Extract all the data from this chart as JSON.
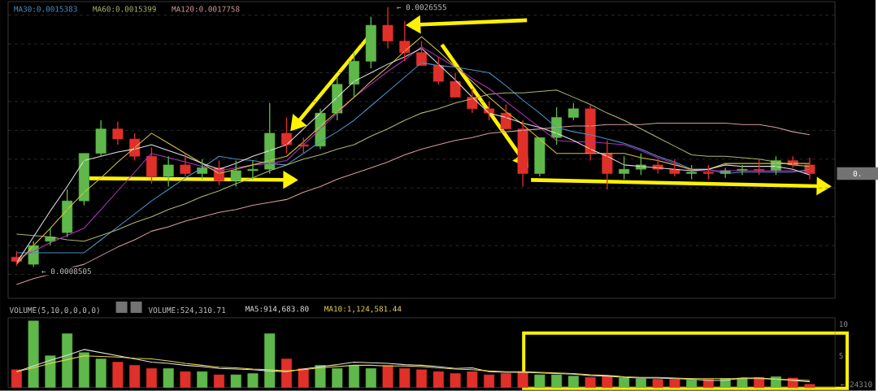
{
  "chart_data": [
    {
      "type": "candlestick",
      "categories": [
        null,
        null,
        null,
        null,
        null,
        null,
        null,
        null,
        null,
        null,
        null,
        null,
        null,
        null,
        null,
        null,
        null,
        null,
        null,
        null,
        null,
        null,
        null,
        null,
        null,
        null,
        null,
        null,
        null,
        null,
        null,
        null,
        null,
        null,
        null,
        null,
        null,
        null,
        null,
        null,
        null,
        null,
        null,
        null,
        null,
        null,
        null,
        null
      ],
      "ohlc": [
        [
          0.00092,
          0.00096,
          0.00086,
          0.00089
        ],
        [
          0.00087,
          0.00103,
          0.0008505,
          0.001
        ],
        [
          0.00103,
          0.00112,
          0.001,
          0.00106
        ],
        [
          0.00109,
          0.00139,
          0.00106,
          0.00131
        ],
        [
          0.00131,
          0.00164,
          0.00128,
          0.00164
        ],
        [
          0.00164,
          0.00187,
          0.00162,
          0.00181
        ],
        [
          0.00181,
          0.00186,
          0.0017,
          0.00174
        ],
        [
          0.00174,
          0.00178,
          0.00159,
          0.00162
        ],
        [
          0.00162,
          0.00168,
          0.00143,
          0.00148
        ],
        [
          0.00148,
          0.00162,
          0.00141,
          0.00156
        ],
        [
          0.00156,
          0.00164,
          0.00148,
          0.0015
        ],
        [
          0.0015,
          0.0016,
          0.00146,
          0.00154
        ],
        [
          0.00154,
          0.00159,
          0.00142,
          0.00145
        ],
        [
          0.00145,
          0.00159,
          0.00141,
          0.00152
        ],
        [
          0.00152,
          0.00159,
          0.00146,
          0.00153
        ],
        [
          0.00153,
          0.00199,
          0.0015,
          0.00178
        ],
        [
          0.00178,
          0.00189,
          0.00164,
          0.0017
        ],
        [
          0.0017,
          0.00175,
          0.00164,
          0.00169
        ],
        [
          0.00169,
          0.00195,
          0.00167,
          0.00192
        ],
        [
          0.00192,
          0.00217,
          0.00187,
          0.00212
        ],
        [
          0.00212,
          0.00234,
          0.00203,
          0.00228
        ],
        [
          0.00228,
          0.00259,
          0.00223,
          0.00253
        ],
        [
          0.00253,
          0.0026555,
          0.00237,
          0.00242
        ],
        [
          0.00242,
          0.00256,
          0.00228,
          0.00234
        ],
        [
          0.00234,
          0.00242,
          0.00225,
          0.00225
        ],
        [
          0.00225,
          0.00231,
          0.00212,
          0.00214
        ],
        [
          0.00214,
          0.0022,
          0.00203,
          0.00203
        ],
        [
          0.00203,
          0.00209,
          0.00192,
          0.00195
        ],
        [
          0.00195,
          0.002,
          0.00187,
          0.00192
        ],
        [
          0.00192,
          0.00198,
          0.00181,
          0.00181
        ],
        [
          0.00181,
          0.00187,
          0.00141,
          0.0015
        ],
        [
          0.0015,
          0.00175,
          0.00148,
          0.00175
        ],
        [
          0.00175,
          0.00196,
          0.0017,
          0.00189
        ],
        [
          0.00189,
          0.00199,
          0.00187,
          0.00195
        ],
        [
          0.00195,
          0.00198,
          0.00159,
          0.00164
        ],
        [
          0.00164,
          0.00173,
          0.00139,
          0.0015
        ],
        [
          0.0015,
          0.00162,
          0.00146,
          0.00153
        ],
        [
          0.00153,
          0.00164,
          0.00149,
          0.00156
        ],
        [
          0.00156,
          0.0016,
          0.0015,
          0.00153
        ],
        [
          0.00153,
          0.0016,
          0.00148,
          0.0015
        ],
        [
          0.0015,
          0.00156,
          0.00146,
          0.00151
        ],
        [
          0.00151,
          0.00156,
          0.00146,
          0.0015
        ],
        [
          0.0015,
          0.00154,
          0.00147,
          0.00152
        ],
        [
          0.00152,
          0.00156,
          0.00149,
          0.00153
        ],
        [
          0.00153,
          0.0016,
          0.00149,
          0.00152
        ],
        [
          0.00152,
          0.00162,
          0.00149,
          0.00159
        ],
        [
          0.00159,
          0.00162,
          0.00154,
          0.00156
        ],
        [
          0.00156,
          0.00161,
          0.00146,
          0.0015
        ]
      ],
      "colors": [
        "#e0302a",
        "#5fb84a",
        "#5fb84a",
        "#5fb84a",
        "#5fb84a",
        "#5fb84a",
        "#e0302a",
        "#e0302a",
        "#e0302a",
        "#5fb84a",
        "#e0302a",
        "#5fb84a",
        "#e0302a",
        "#5fb84a",
        "#5fb84a",
        "#5fb84a",
        "#e0302a",
        "#e0302a",
        "#5fb84a",
        "#5fb84a",
        "#5fb84a",
        "#5fb84a",
        "#e0302a",
        "#e0302a",
        "#e0302a",
        "#e0302a",
        "#e0302a",
        "#e0302a",
        "#e0302a",
        "#e0302a",
        "#e0302a",
        "#5fb84a",
        "#5fb84a",
        "#5fb84a",
        "#e0302a",
        "#e0302a",
        "#5fb84a",
        "#5fb84a",
        "#e0302a",
        "#e0302a",
        "#5fb84a",
        "#e0302a",
        "#5fb84a",
        "#5fb84a",
        "#e0302a",
        "#5fb84a",
        "#e0302a",
        "#e0302a"
      ],
      "series": [
        {
          "type": "line",
          "name": "MA30:0.0015383",
          "color": "#4a90c8",
          "values": [
            0.00095,
            0.00095,
            0.00095,
            0.00095,
            0.00095,
            0.00104,
            0.00113,
            0.00122,
            0.00131,
            0.00139,
            0.00147,
            0.00154,
            0.00162,
            0.0016,
            0.00159,
            0.00157,
            0.00156,
            0.00164,
            0.00172,
            0.00179,
            0.00187,
            0.00197,
            0.00207,
            0.00217,
            0.00227,
            0.00225,
            0.00224,
            0.00222,
            0.0022,
            0.00211,
            0.00201,
            0.00192,
            0.00182,
            0.00179,
            0.00177,
            0.00174,
            0.00171,
            0.00167,
            0.00162,
            0.00158,
            0.00153,
            0.00153,
            0.0015,
            0.00151,
            0.00151,
            0.00151,
            0.00151,
            0.00153
          ]
        },
        {
          "type": "line",
          "name": "MA60:0.0015399",
          "color": "#a8b870",
          "values": [
            0.00108,
            0.00107,
            0.00106,
            0.00104,
            0.00103,
            0.00107,
            0.00111,
            0.00116,
            0.0012,
            0.00125,
            0.00129,
            0.00134,
            0.00138,
            0.00143,
            0.00147,
            0.00152,
            0.00156,
            0.0016,
            0.00163,
            0.00167,
            0.0017,
            0.00176,
            0.00181,
            0.00187,
            0.00192,
            0.00195,
            0.00199,
            0.00202,
            0.00205,
            0.00206,
            0.00206,
            0.00207,
            0.00208,
            0.00203,
            0.00198,
            0.00192,
            0.00187,
            0.00181,
            0.00175,
            0.00169,
            0.00163,
            0.00162,
            0.00162,
            0.00161,
            0.0016,
            0.00158,
            0.00156,
            0.00155
          ]
        },
        {
          "type": "line",
          "name": "MA120:0.0017758",
          "color": "#d49a9a",
          "values": [
            0.00073,
            0.00077,
            0.0008,
            0.00084,
            0.00087,
            0.00093,
            0.00099,
            0.00104,
            0.0011,
            0.00113,
            0.00117,
            0.0012,
            0.00123,
            0.00125,
            0.00128,
            0.0013,
            0.00132,
            0.00137,
            0.00141,
            0.00146,
            0.0015,
            0.00154,
            0.00158,
            0.00163,
            0.00167,
            0.0017,
            0.00173,
            0.00175,
            0.00178,
            0.00179,
            0.0018,
            0.00181,
            0.00182,
            0.00183,
            0.00183,
            0.00184,
            0.00184,
            0.00184,
            0.00185,
            0.00185,
            0.00185,
            0.00185,
            0.00185,
            0.00184,
            0.00184,
            0.00182,
            0.00179,
            0.00177
          ]
        },
        {
          "type": "line",
          "color": "#b030c0",
          "values": [
            0.00091,
            0.00096,
            0.00102,
            0.00107,
            0.00112,
            0.00125,
            0.00138,
            0.00151,
            0.00164,
            0.00161,
            0.00158,
            0.00155,
            0.00152,
            0.00154,
            0.00156,
            0.00157,
            0.00159,
            0.0017,
            0.00181,
            0.00192,
            0.00203,
            0.00212,
            0.00221,
            0.00229,
            0.00238,
            0.00231,
            0.00224,
            0.00216,
            0.00209,
            0.002,
            0.00191,
            0.00182,
            0.00173,
            0.00172,
            0.00172,
            0.00171,
            0.0017,
            0.00166,
            0.00161,
            0.00157,
            0.00152,
            0.00152,
            0.00152,
            0.00152,
            0.00152,
            0.00152,
            0.00152,
            0.00151
          ]
        },
        {
          "type": "line",
          "color": "#d8c040",
          "values": [
            0.00087,
            0.001,
            0.00112,
            0.00125,
            0.00137,
            0.00147,
            0.00158,
            0.00168,
            0.00178,
            0.00171,
            0.00164,
            0.00157,
            0.0015,
            0.00153,
            0.00156,
            0.00159,
            0.00162,
            0.00172,
            0.00183,
            0.00193,
            0.00203,
            0.00214,
            0.00224,
            0.00235,
            0.00245,
            0.00235,
            0.00224,
            0.00214,
            0.00203,
            0.00193,
            0.00184,
            0.00174,
            0.00164,
            0.00164,
            0.00164,
            0.00164,
            0.00164,
            0.00161,
            0.00159,
            0.00156,
            0.00153,
            0.00153,
            0.00157,
            0.00157,
            0.00157,
            0.00157,
            0.00157,
            0.00157
          ]
        },
        {
          "type": "line",
          "color": "#e0e0e0",
          "values": [
            0.00088,
            0.00106,
            0.00124,
            0.00141,
            0.00159,
            0.00162,
            0.00165,
            0.00167,
            0.0017,
            0.00166,
            0.00162,
            0.00157,
            0.00153,
            0.00157,
            0.00162,
            0.00166,
            0.0017,
            0.00181,
            0.00192,
            0.00203,
            0.00214,
            0.0022,
            0.00226,
            0.00231,
            0.00237,
            0.00226,
            0.00215,
            0.00203,
            0.00192,
            0.00189,
            0.00185,
            0.00182,
            0.00178,
            0.00173,
            0.00167,
            0.00162,
            0.00156,
            0.00155,
            0.00154,
            0.00153,
            0.00152,
            0.00153,
            0.00156,
            0.00155,
            0.00155,
            0.00155,
            0.00153,
            0.00149
          ]
        }
      ],
      "annotations": [
        "← 0.0026555",
        "← 0.0008505",
        "0."
      ],
      "grid": "y",
      "legend": "top left",
      "tick_labels": false
    },
    {
      "type": "bar",
      "title": "VOLUME(5,10,0,0,0,0)",
      "categories": [
        null,
        null,
        null,
        null,
        null,
        null,
        null,
        null,
        null,
        null,
        null,
        null,
        null,
        null,
        null,
        null,
        null,
        null,
        null,
        null,
        null,
        null,
        null,
        null,
        null,
        null,
        null,
        null,
        null,
        null,
        null,
        null,
        null,
        null,
        null,
        null,
        null,
        null,
        null,
        null,
        null,
        null,
        null,
        null,
        null,
        null,
        null,
        null
      ],
      "values": [
        2.8,
        10.5,
        5.0,
        8.5,
        5.5,
        4.5,
        4.0,
        3.5,
        3.0,
        3.0,
        2.5,
        2.5,
        2.0,
        2.0,
        2.2,
        8.5,
        4.5,
        3.0,
        3.5,
        3.0,
        3.5,
        3.0,
        3.5,
        3.0,
        2.8,
        2.5,
        2.2,
        2.5,
        2.0,
        2.2,
        2.5,
        2.0,
        2.0,
        1.8,
        1.6,
        1.8,
        1.5,
        1.4,
        1.3,
        1.3,
        1.2,
        1.3,
        1.4,
        1.5,
        1.6,
        1.7,
        1.5,
        0.5
      ],
      "colors": [
        "#e0302a",
        "#5fb84a",
        "#5fb84a",
        "#5fb84a",
        "#5fb84a",
        "#5fb84a",
        "#e0302a",
        "#e0302a",
        "#e0302a",
        "#5fb84a",
        "#e0302a",
        "#5fb84a",
        "#e0302a",
        "#5fb84a",
        "#5fb84a",
        "#5fb84a",
        "#e0302a",
        "#e0302a",
        "#5fb84a",
        "#5fb84a",
        "#5fb84a",
        "#5fb84a",
        "#e0302a",
        "#e0302a",
        "#e0302a",
        "#e0302a",
        "#e0302a",
        "#e0302a",
        "#e0302a",
        "#e0302a",
        "#e0302a",
        "#5fb84a",
        "#5fb84a",
        "#5fb84a",
        "#e0302a",
        "#e0302a",
        "#5fb84a",
        "#5fb84a",
        "#e0302a",
        "#e0302a",
        "#5fb84a",
        "#e0302a",
        "#5fb84a",
        "#5fb84a",
        "#e0302a",
        "#5fb84a",
        "#e0302a",
        "#e0302a"
      ],
      "series": [
        {
          "type": "line",
          "name": "MA5:914,683.80",
          "color": "#e0e0e0",
          "values": [
            2.5,
            3.4,
            4.3,
            5.1,
            6.0,
            5.5,
            5.0,
            4.5,
            4.0,
            3.8,
            3.5,
            3.3,
            3.0,
            2.9,
            2.8,
            2.6,
            2.5,
            2.9,
            3.3,
            3.6,
            4.0,
            3.9,
            3.8,
            3.6,
            3.5,
            3.3,
            3.0,
            3.1,
            2.5,
            2.4,
            2.4,
            2.3,
            2.2,
            2.1,
            1.9,
            1.8,
            1.6,
            1.5,
            1.5,
            1.4,
            1.3,
            1.1,
            1.1,
            1.5,
            1.5,
            1.3,
            1.1,
            0.9
          ]
        },
        {
          "type": "line",
          "name": "MA10:1,124,581.44",
          "color": "#e8d44d",
          "values": [
            2.5,
            3.1,
            3.8,
            4.4,
            5.0,
            4.9,
            4.8,
            4.6,
            4.5,
            4.2,
            3.8,
            3.5,
            3.2,
            3.1,
            2.9,
            2.8,
            2.6,
            2.8,
            3.1,
            3.3,
            3.5,
            3.5,
            3.4,
            3.4,
            3.3,
            3.1,
            2.9,
            2.8,
            2.6,
            2.5,
            2.5,
            2.4,
            2.3,
            2.2,
            2.0,
            1.9,
            1.7,
            1.6,
            1.6,
            1.5,
            1.4,
            1.4,
            1.4,
            1.4,
            1.4,
            1.3,
            1.2,
            1.1
          ]
        }
      ],
      "annotations": [
        "VOLUME:524,310.71",
        "← 24310"
      ],
      "ylim": [
        0,
        11
      ],
      "yticks": [
        5,
        10
      ],
      "legend": "top left",
      "tick_labels": "y"
    }
  ]
}
